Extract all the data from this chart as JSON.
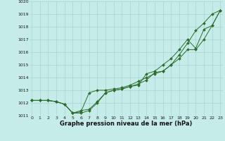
{
  "title": "Graphe pression niveau de la mer (hPa)",
  "bg_color": "#c5ece8",
  "grid_color": "#a8d5d0",
  "line_color": "#2d6e2d",
  "x_min": 0,
  "x_max": 23,
  "y_min": 1011,
  "y_max": 1020,
  "line1": [
    1012.2,
    1012.2,
    1012.2,
    1012.1,
    1011.9,
    1011.2,
    1011.2,
    1011.4,
    1012.0,
    1012.8,
    1013.0,
    1013.1,
    1013.3,
    1013.4,
    1014.3,
    1014.5,
    1015.0,
    1015.5,
    1016.2,
    1017.0,
    1016.3,
    1017.8,
    1018.1,
    1019.3
  ],
  "line2": [
    1012.2,
    1012.2,
    1012.2,
    1012.1,
    1011.9,
    1011.2,
    1011.3,
    1012.8,
    1013.0,
    1013.0,
    1013.1,
    1013.2,
    1013.4,
    1013.7,
    1014.0,
    1014.3,
    1014.5,
    1015.0,
    1015.8,
    1016.7,
    1017.7,
    1018.3,
    1019.0,
    1019.3
  ],
  "line3": [
    1012.2,
    1012.2,
    1012.2,
    1012.1,
    1011.9,
    1011.2,
    1011.4,
    1011.5,
    1012.1,
    1012.8,
    1013.0,
    1013.1,
    1013.3,
    1013.5,
    1013.8,
    1014.4,
    1014.5,
    1015.0,
    1015.5,
    1016.2,
    1016.2,
    1017.0,
    1018.1,
    1019.3
  ],
  "title_fontsize": 6.0,
  "tick_fontsize": 4.5,
  "marker_size": 2.0,
  "linewidth": 0.7
}
